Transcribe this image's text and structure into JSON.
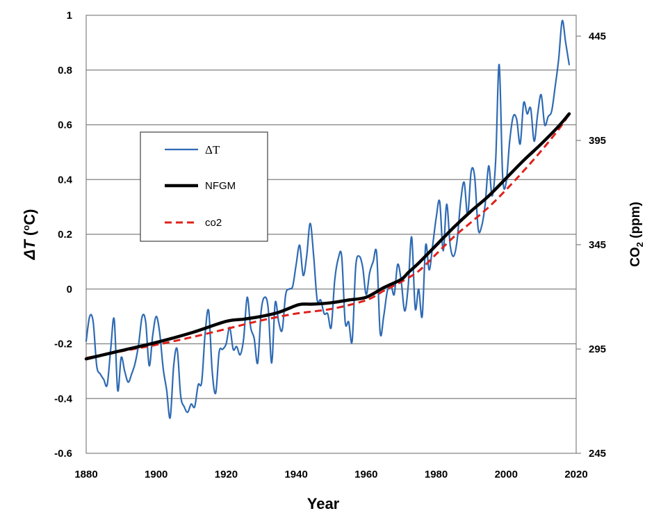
{
  "chart_data": {
    "type": "line",
    "title": "",
    "xlabel": "Year",
    "ylabel_symbol": "ΔT",
    "ylabel_unit": " (°C)",
    "ylabel_unit_deg": "o",
    "ylabel_unit_c": "C",
    "y2label_prefix": "CO",
    "y2label_sub": "2",
    "y2label_suffix": " (ppm)",
    "xlim": [
      1880,
      2020
    ],
    "ylim": [
      -0.6,
      1.0
    ],
    "y2lim": [
      245,
      455
    ],
    "x_ticks": [
      "1880",
      "1900",
      "1920",
      "1940",
      "1960",
      "1980",
      "2000",
      "2020"
    ],
    "y_ticks": [
      "1",
      "0.8",
      "0.6",
      "0.4",
      "0.2",
      "0",
      "-0.2",
      "-0.4",
      "-0.6"
    ],
    "y2_ticks": [
      "445",
      "395",
      "345",
      "295",
      "245"
    ],
    "grid": true,
    "legend_position": "upper-left",
    "colors": {
      "dT": "#2e6ab3",
      "nfgm": "#000000",
      "co2": "#e0211b",
      "grid": "#808080"
    },
    "series": [
      {
        "name": "ΔT",
        "color": "#2e6ab3",
        "style": "solid",
        "axis": "left",
        "x": [
          1880,
          1881,
          1882,
          1883,
          1884,
          1885,
          1886,
          1887,
          1888,
          1889,
          1890,
          1891,
          1892,
          1893,
          1894,
          1895,
          1896,
          1897,
          1898,
          1899,
          1900,
          1901,
          1902,
          1903,
          1904,
          1905,
          1906,
          1907,
          1908,
          1909,
          1910,
          1911,
          1912,
          1913,
          1914,
          1915,
          1916,
          1917,
          1918,
          1919,
          1920,
          1921,
          1922,
          1923,
          1924,
          1925,
          1926,
          1927,
          1928,
          1929,
          1930,
          1931,
          1932,
          1933,
          1934,
          1935,
          1936,
          1937,
          1938,
          1939,
          1940,
          1941,
          1942,
          1943,
          1944,
          1945,
          1946,
          1947,
          1948,
          1949,
          1950,
          1951,
          1952,
          1953,
          1954,
          1955,
          1956,
          1957,
          1958,
          1959,
          1960,
          1961,
          1962,
          1963,
          1964,
          1965,
          1966,
          1967,
          1968,
          1969,
          1970,
          1971,
          1972,
          1973,
          1974,
          1975,
          1976,
          1977,
          1978,
          1979,
          1980,
          1981,
          1982,
          1983,
          1984,
          1985,
          1986,
          1987,
          1988,
          1989,
          1990,
          1991,
          1992,
          1993,
          1994,
          1995,
          1996,
          1997,
          1998,
          1999,
          2000,
          2001,
          2002,
          2003,
          2004,
          2005,
          2006,
          2007,
          2008,
          2009,
          2010,
          2011,
          2012,
          2013,
          2014,
          2015,
          2016,
          2017,
          2018
        ],
        "values": [
          -0.19,
          -0.1,
          -0.12,
          -0.28,
          -0.31,
          -0.33,
          -0.35,
          -0.22,
          -0.11,
          -0.37,
          -0.25,
          -0.3,
          -0.34,
          -0.31,
          -0.27,
          -0.2,
          -0.1,
          -0.12,
          -0.28,
          -0.17,
          -0.1,
          -0.16,
          -0.29,
          -0.37,
          -0.47,
          -0.28,
          -0.22,
          -0.39,
          -0.43,
          -0.45,
          -0.42,
          -0.43,
          -0.35,
          -0.34,
          -0.16,
          -0.08,
          -0.3,
          -0.38,
          -0.23,
          -0.22,
          -0.2,
          -0.14,
          -0.22,
          -0.21,
          -0.24,
          -0.18,
          -0.03,
          -0.14,
          -0.18,
          -0.27,
          -0.08,
          -0.03,
          -0.07,
          -0.27,
          -0.05,
          -0.12,
          -0.15,
          -0.02,
          0.0,
          0.01,
          0.09,
          0.16,
          0.05,
          0.12,
          0.24,
          0.12,
          -0.04,
          -0.04,
          -0.09,
          -0.09,
          -0.14,
          0.03,
          0.11,
          0.12,
          -0.12,
          -0.12,
          -0.19,
          0.08,
          0.12,
          0.08,
          -0.02,
          0.06,
          0.1,
          0.13,
          -0.16,
          -0.1,
          -0.01,
          0.02,
          -0.02,
          0.09,
          0.03,
          -0.08,
          0.01,
          0.19,
          -0.07,
          0.0,
          -0.1,
          0.16,
          0.07,
          0.16,
          0.26,
          0.32,
          0.14,
          0.31,
          0.16,
          0.12,
          0.18,
          0.32,
          0.39,
          0.27,
          0.43,
          0.41,
          0.22,
          0.23,
          0.31,
          0.45,
          0.34,
          0.47,
          0.82,
          0.41,
          0.39,
          0.54,
          0.63,
          0.62,
          0.53,
          0.68,
          0.64,
          0.66,
          0.54,
          0.64,
          0.71,
          0.6,
          0.63,
          0.65,
          0.74,
          0.84,
          0.98,
          0.9,
          0.82
        ]
      },
      {
        "name": "NFGM",
        "color": "#000000",
        "style": "solid",
        "axis": "left",
        "x": [
          1880,
          1890,
          1900,
          1910,
          1920,
          1925,
          1930,
          1935,
          1940,
          1942,
          1945,
          1950,
          1955,
          1960,
          1965,
          1970,
          1972,
          1975,
          1980,
          1985,
          1990,
          1995,
          2000,
          2005,
          2010,
          2015,
          2018
        ],
        "values": [
          -0.255,
          -0.225,
          -0.195,
          -0.16,
          -0.118,
          -0.11,
          -0.1,
          -0.085,
          -0.06,
          -0.055,
          -0.055,
          -0.05,
          -0.04,
          -0.03,
          0.005,
          0.035,
          0.06,
          0.095,
          0.16,
          0.225,
          0.285,
          0.34,
          0.405,
          0.47,
          0.53,
          0.595,
          0.64
        ]
      },
      {
        "name": "co2",
        "color": "#e0211b",
        "style": "dashed",
        "axis": "right",
        "x": [
          1880,
          1890,
          1900,
          1910,
          1920,
          1930,
          1940,
          1950,
          1960,
          1965,
          1970,
          1975,
          1980,
          1985,
          1990,
          1995,
          2000,
          2005,
          2010,
          2015,
          2018
        ],
        "values": [
          290.7,
          293.9,
          297.0,
          300.6,
          304.6,
          308.7,
          312.0,
          314.2,
          318.4,
          322.9,
          327.2,
          332.4,
          340.5,
          348.7,
          355.8,
          363.0,
          371.4,
          380.4,
          390.0,
          400.3,
          407.5
        ]
      }
    ]
  }
}
